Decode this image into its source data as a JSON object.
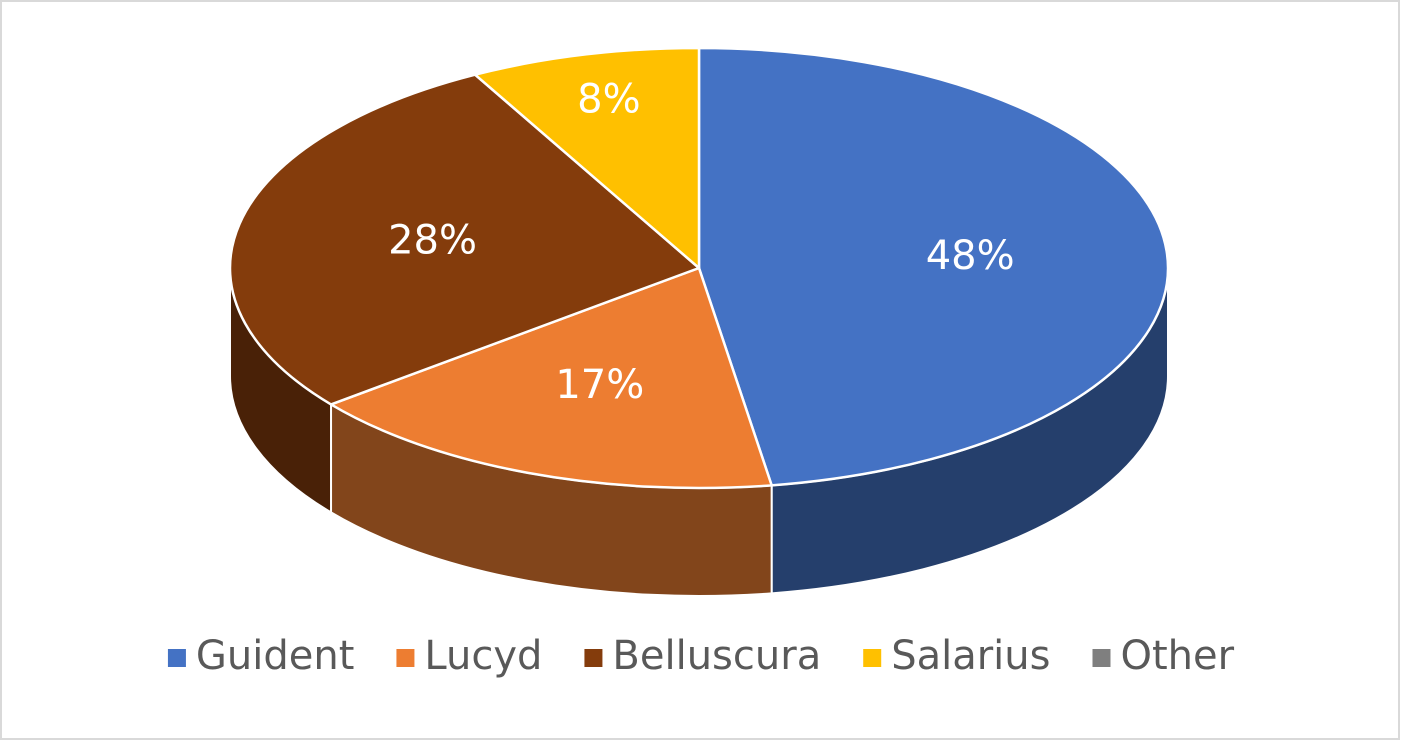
{
  "chart_data": {
    "type": "pie3d",
    "categories": [
      "Guident",
      "Lucyd",
      "Belluscura",
      "Salarius",
      "Other"
    ],
    "values": [
      48,
      17,
      28,
      8,
      0
    ],
    "value_labels": [
      "48%",
      "17%",
      "28%",
      "8%",
      null
    ],
    "colors": [
      "#4472c4",
      "#ed7d31",
      "#843c0c",
      "#ffc000",
      "#7f7f7f"
    ],
    "legend": "bottom"
  }
}
